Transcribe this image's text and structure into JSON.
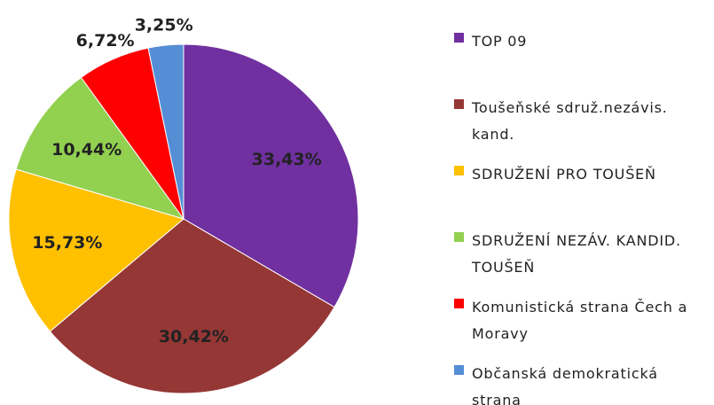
{
  "chart_data": {
    "type": "pie",
    "categories": [
      "TOP 09",
      "Toušeňské sdruž.nezávis. kand.",
      "SDRUŽENÍ PRO TOUŠEŇ",
      "SDRUŽENÍ NEZÁV. KANDID. TOUŠEŇ",
      "Komunistická strana Čech a Moravy",
      "Občanská demokratická strana"
    ],
    "values": [
      33.43,
      30.42,
      15.73,
      10.44,
      6.72,
      3.25
    ],
    "value_labels": [
      "33,43%",
      "30,42%",
      "15,73%",
      "10,44%",
      "6,72%",
      "3,25%"
    ],
    "colors": [
      "#7030a0",
      "#953735",
      "#ffc000",
      "#92d050",
      "#ff0000",
      "#558ed5"
    ],
    "legend": "right"
  }
}
